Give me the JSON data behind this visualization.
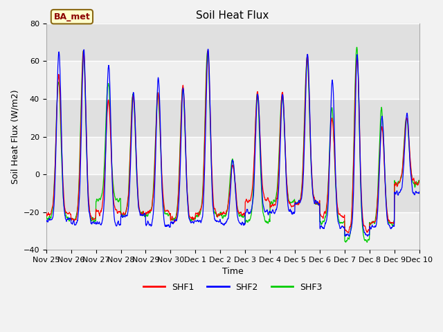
{
  "title": "Soil Heat Flux",
  "ylabel": "Soil Heat Flux (W/m2)",
  "xlabel": "Time",
  "ylim": [
    -40,
    80
  ],
  "yticks": [
    -40,
    -20,
    0,
    20,
    40,
    60,
    80
  ],
  "xtick_labels": [
    "Nov 25",
    "Nov 26",
    "Nov 27",
    "Nov 28",
    "Nov 29",
    "Nov 30",
    "Dec 1",
    "Dec 2",
    "Dec 3",
    "Dec 4",
    "Dec 5",
    "Dec 6",
    "Dec 7",
    "Dec 8",
    "Dec 9",
    "Dec 10"
  ],
  "colors": {
    "SHF1": "#ff0000",
    "SHF2": "#0000ff",
    "SHF3": "#00cc00"
  },
  "legend_label": "BA_met",
  "plot_bg_color": "#e0e0e0",
  "fig_bg_color": "#f2f2f2",
  "grid_color": "#ffffff",
  "title_fontsize": 11,
  "axis_label_fontsize": 9,
  "tick_fontsize": 8,
  "legend_fontsize": 9
}
